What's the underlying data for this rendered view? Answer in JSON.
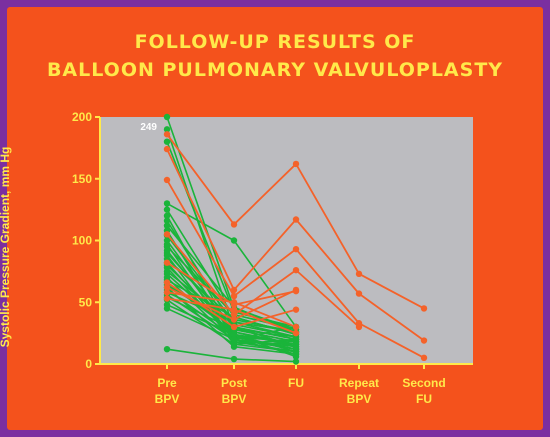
{
  "slide": {
    "title_line1": "FOLLOW-UP RESULTS OF",
    "title_line2": "BALLOON PULMONARY VALVULOPLASTY"
  },
  "colors": {
    "background": "#f4521c",
    "border": "#7b2fa0",
    "plot_area": "#bcbcc0",
    "text": "#ffe94a",
    "green_series": "#1ab43a",
    "orange_series": "#f4622a"
  },
  "chart_data": {
    "type": "line",
    "title": "FOLLOW-UP RESULTS OF BALLOON PULMONARY VALVULOPLASTY",
    "ylabel": "Systolic Pressure Gradient, mm Hg",
    "xlabel": "",
    "ylim": [
      0,
      200
    ],
    "yticks": [
      0,
      50,
      100,
      150,
      200
    ],
    "categories": [
      "Pre BPV",
      "Post BPV",
      "FU",
      "Repeat BPV",
      "Second FU"
    ],
    "category_labels": [
      [
        "Pre",
        "BPV"
      ],
      [
        "Post",
        "BPV"
      ],
      [
        "FU"
      ],
      [
        "Repeat",
        "BPV"
      ],
      [
        "Second",
        "FU"
      ]
    ],
    "annotations": [
      {
        "text": "249",
        "x": "Pre BPV",
        "y": 200
      }
    ],
    "green_lines": [
      [
        200,
        45,
        28
      ],
      [
        190,
        28,
        18
      ],
      [
        180,
        42,
        30
      ],
      [
        130,
        100,
        30
      ],
      [
        125,
        38,
        24
      ],
      [
        120,
        22,
        12
      ],
      [
        116,
        30,
        20
      ],
      [
        112,
        46,
        26
      ],
      [
        108,
        20,
        8
      ],
      [
        104,
        34,
        22
      ],
      [
        100,
        26,
        16
      ],
      [
        97,
        18,
        10
      ],
      [
        95,
        40,
        28
      ],
      [
        92,
        24,
        6
      ],
      [
        90,
        30,
        14
      ],
      [
        88,
        16,
        20
      ],
      [
        85,
        36,
        26
      ],
      [
        82,
        22,
        12
      ],
      [
        80,
        28,
        18
      ],
      [
        78,
        20,
        30
      ],
      [
        75,
        32,
        22
      ],
      [
        73,
        24,
        10
      ],
      [
        70,
        18,
        16
      ],
      [
        68,
        38,
        24
      ],
      [
        66,
        26,
        14
      ],
      [
        64,
        30,
        20
      ],
      [
        62,
        14,
        8
      ],
      [
        60,
        22,
        18
      ],
      [
        58,
        34,
        26
      ],
      [
        56,
        20,
        12
      ],
      [
        54,
        28,
        22
      ],
      [
        52,
        16,
        10
      ],
      [
        48,
        24,
        16
      ],
      [
        45,
        20,
        14
      ],
      [
        12,
        4,
        2
      ]
    ],
    "orange_lines": [
      {
        "values": [
          186,
          113,
          162,
          73,
          45
        ]
      },
      {
        "values": [
          174,
          60,
          117,
          57,
          19
        ]
      },
      {
        "values": [
          149,
          55,
          93,
          33,
          5
        ]
      },
      {
        "values": [
          105,
          40,
          76,
          30
        ]
      },
      {
        "values": [
          82,
          48,
          59
        ]
      },
      {
        "values": [
          66,
          30,
          44
        ]
      },
      {
        "values": [
          62,
          36,
          60
        ]
      },
      {
        "values": [
          58,
          50,
          30
        ]
      },
      {
        "values": [
          53,
          44,
          25
        ]
      }
    ]
  }
}
